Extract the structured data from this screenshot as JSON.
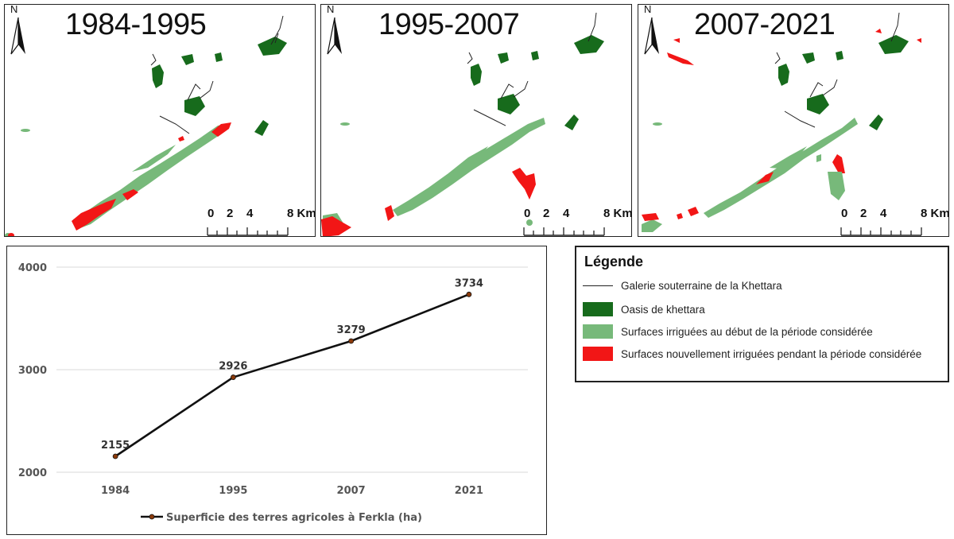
{
  "colors": {
    "oasis": "#176b1c",
    "irrigated_start": "#77b97a",
    "newly_irrigated": "#f21616",
    "gallery": "#222222",
    "chart_line": "#111111",
    "chart_marker": "#8b3a0a",
    "grid": "#d9d9d9"
  },
  "maps": [
    {
      "title": "1984-1995",
      "north_label": "N",
      "scale_labels": [
        "0",
        "2",
        "4",
        "8 Km"
      ]
    },
    {
      "title": "1995-2007",
      "north_label": "N",
      "scale_labels": [
        "0",
        "2",
        "4",
        "8 Km"
      ]
    },
    {
      "title": "2007-2021",
      "north_label": "N",
      "scale_labels": [
        "0",
        "2",
        "4",
        "8 Km"
      ]
    }
  ],
  "legend": {
    "title": "Légende",
    "items": [
      {
        "kind": "line",
        "label": "Galerie souterraine de la Khettara"
      },
      {
        "kind": "oasis",
        "label": "Oasis de khettara"
      },
      {
        "kind": "irrigated_start",
        "label": "Surfaces irriguées au début de la période considérée"
      },
      {
        "kind": "newly_irrigated",
        "label": "Surfaces nouvellement irriguées pendant la période considérée"
      }
    ]
  },
  "chart_data": {
    "type": "line",
    "categories": [
      "1984",
      "1995",
      "2007",
      "2021"
    ],
    "series": [
      {
        "name": "Superficie des terres agricoles à Ferkla (ha)",
        "values": [
          2155,
          2926,
          3279,
          3734
        ]
      }
    ],
    "data_labels": [
      "2155",
      "2926",
      "3279",
      "3734"
    ],
    "y_ticks": [
      2000,
      3000,
      4000
    ],
    "y_tick_labels": [
      "2000",
      "3000",
      "4000"
    ],
    "ylim": [
      2000,
      4000
    ],
    "grid": true,
    "legend_position": "bottom"
  }
}
